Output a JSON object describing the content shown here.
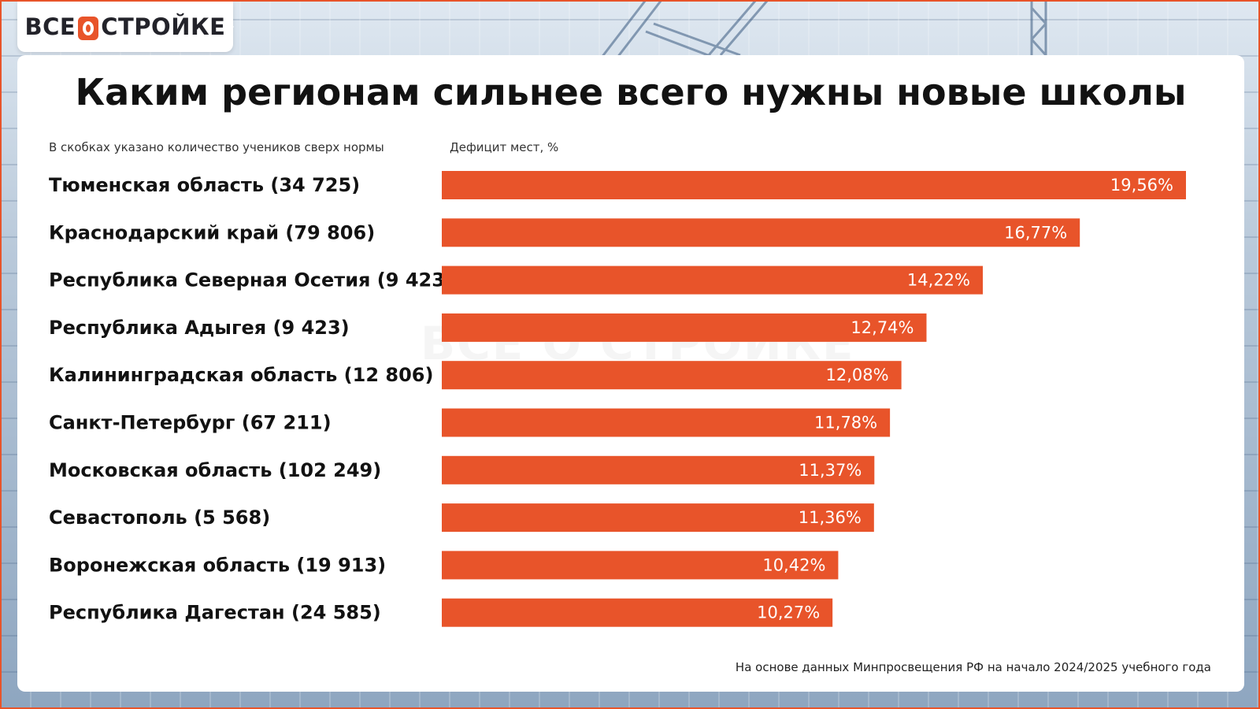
{
  "brand": {
    "logo_left": "ВСЕ",
    "logo_right": "СТРОЙКЕ",
    "watermark": "ВСЕ О СТРОЙКЕ",
    "accent_color": "#e8542a"
  },
  "header": {
    "title": "Каким регионам сильнее всего нужны новые школы",
    "note": "В скобках указано количество учеников сверх нормы",
    "axis_label": "Дефицит мест, %"
  },
  "footer": {
    "source": "На основе данных Минпросвещения РФ на начало 2024/2025 учебного года"
  },
  "chart_data": {
    "type": "bar",
    "orientation": "horizontal",
    "title": "Каким регионам сильнее всего нужны новые школы",
    "xlabel": "Дефицит мест, %",
    "ylabel": "",
    "xlim": [
      0,
      19.56
    ],
    "grid": false,
    "bar_color": "#e8542a",
    "categories": [
      "Тюменская область (34 725)",
      "Краснодарский край (79 806)",
      "Республика Северная Осетия (9 423)",
      "Республика Адыгея (9 423)",
      "Калининградская область (12 806)",
      "Санкт-Петербург (67 211)",
      "Московская область (102 249)",
      "Севастополь (5 568)",
      "Воронежская область (19 913)",
      "Республика Дагестан (24 585)"
    ],
    "values": [
      19.56,
      16.77,
      14.22,
      12.74,
      12.08,
      11.78,
      11.37,
      11.36,
      10.42,
      10.27
    ],
    "value_labels": [
      "19,56%",
      "16,77%",
      "14,22%",
      "12,74%",
      "12,08%",
      "11,78%",
      "11,37%",
      "11,36%",
      "10,42%",
      "10,27%"
    ]
  }
}
